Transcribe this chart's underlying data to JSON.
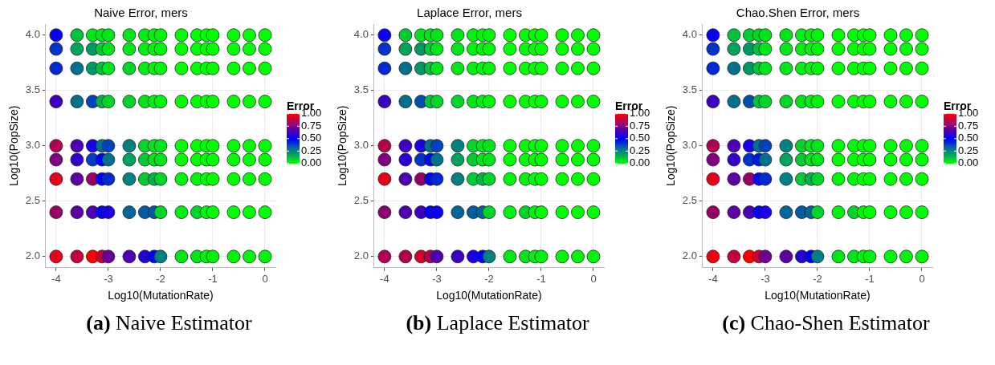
{
  "chart_data": [
    {
      "type": "scatter",
      "title": "Naive Error, mers",
      "xlabel": "Log10(MutationRate)",
      "ylabel": "Log10(PopSize)",
      "clabel": "Error",
      "clim": [
        0,
        1
      ],
      "cticks": [
        {
          "value": 0,
          "label": "0.00"
        },
        {
          "value": 0.25,
          "label": "0.25"
        },
        {
          "value": 0.5,
          "label": "0.50"
        },
        {
          "value": 0.75,
          "label": "0.75"
        },
        {
          "value": 1,
          "label": "1.00"
        }
      ],
      "xlim": [
        -4.2,
        0.2
      ],
      "ylim": [
        1.9,
        4.1
      ],
      "xticks": [
        -4,
        -3,
        -2,
        -1,
        0
      ],
      "yticks": [
        {
          "value": 2,
          "label": "2.0"
        },
        {
          "value": 2.5,
          "label": "2.5"
        },
        {
          "value": 3,
          "label": "3.0"
        },
        {
          "value": 3.5,
          "label": "3.5"
        },
        {
          "value": 4,
          "label": "4.0"
        }
      ],
      "grid": true,
      "marker": "circle",
      "legend": false,
      "annotations": [
        "(a) Naive Estimator"
      ],
      "x": [
        -4,
        -3.6,
        -3.3,
        -3.12,
        -3,
        -2.6,
        -2.3,
        -2.12,
        -2,
        -1.6,
        -1.3,
        -1.12,
        -1,
        -0.6,
        -0.3,
        0
      ],
      "series": [
        {
          "values": [
            4,
            4,
            4,
            4,
            4,
            4,
            4,
            4,
            4,
            4,
            4,
            4,
            4,
            4,
            4,
            4
          ],
          "colors": [
            "#0a00f5",
            "#00c23d",
            "#00e61a",
            "#00e61a",
            "#00e61a",
            "#00e61a",
            "#00f00f",
            "#00f50a",
            "#00f50a",
            "#00ff00",
            "#00ff00",
            "#00ff00",
            "#00ff00",
            "#00ff00",
            "#00ff00",
            "#00ff00"
          ]
        },
        {
          "values": [
            3.875,
            3.875,
            3.875,
            3.875,
            3.875,
            3.875,
            3.875,
            3.875,
            3.875,
            3.875,
            3.875,
            3.875,
            3.875,
            3.875,
            3.875,
            3.875
          ],
          "colors": [
            "#0033cc",
            "#00a35c",
            "#009966",
            "#00cc33",
            "#00e61a",
            "#00e61a",
            "#00f00f",
            "#00f50a",
            "#00f50a",
            "#00ff00",
            "#00ff00",
            "#00ff00",
            "#00ff00",
            "#00ff00",
            "#00ff00",
            "#00ff00"
          ]
        },
        {
          "values": [
            3.7,
            3.7,
            3.7,
            3.7,
            3.7,
            3.7,
            3.7,
            3.7,
            3.7,
            3.7,
            3.7,
            3.7,
            3.7,
            3.7,
            3.7,
            3.7
          ],
          "colors": [
            "#0029d6",
            "#00708f",
            "#009966",
            "#00c23d",
            "#00e61a",
            "#00d629",
            "#00f00f",
            "#00f50a",
            "#00f50a",
            "#00ff00",
            "#00ff00",
            "#00ff00",
            "#00ff00",
            "#00ff00",
            "#00ff00",
            "#00ff00"
          ]
        },
        {
          "values": [
            3.4,
            3.4,
            3.4,
            3.4,
            3.4,
            3.4,
            3.4,
            3.4,
            3.4,
            3.4,
            3.4,
            3.4,
            3.4,
            3.4,
            3.4,
            3.4
          ],
          "colors": [
            "#3d00c2",
            "#00708f",
            "#0042bd",
            "#00b34d",
            "#00d629",
            "#00d629",
            "#00e61a",
            "#00f00f",
            "#00f50a",
            "#00ff00",
            "#00ff00",
            "#00ff00",
            "#00ff00",
            "#00ff00",
            "#00ff00",
            "#00ff00"
          ]
        },
        {
          "values": [
            3,
            3,
            3,
            3,
            3,
            3,
            3,
            3,
            3,
            3,
            3,
            3,
            3,
            3,
            3,
            3
          ],
          "colors": [
            "#b3004d",
            "#4d00b3",
            "#1a00e6",
            "#00708f",
            "#0042bd",
            "#008080",
            "#00d629",
            "#00e61a",
            "#00e61a",
            "#00ff00",
            "#00ff00",
            "#00ff00",
            "#00ff00",
            "#00ff00",
            "#00ff00",
            "#00ff00"
          ]
        },
        {
          "values": [
            2.875,
            2.875,
            2.875,
            2.875,
            2.875,
            2.875,
            2.875,
            2.875,
            2.875,
            2.875,
            2.875,
            2.875,
            2.875,
            2.875,
            2.875,
            2.875
          ],
          "colors": [
            "#800080",
            "#3300cc",
            "#003dc2",
            "#0000ff",
            "#00708f",
            "#00a35c",
            "#00cc33",
            "#00e61a",
            "#00e61a",
            "#00ff00",
            "#00ff00",
            "#00ff00",
            "#00ff00",
            "#00ff00",
            "#00ff00",
            "#00ff00"
          ]
        },
        {
          "values": [
            2.7,
            2.7,
            2.7,
            2.7,
            2.7,
            2.7,
            2.7,
            2.7,
            2.7,
            2.7,
            2.7,
            2.7,
            2.7,
            2.7,
            2.7,
            2.7
          ],
          "colors": [
            "#e6001a",
            "#5c00a3",
            "#990066",
            "#0000ff",
            "#0029d6",
            "#008080",
            "#00cc33",
            "#00b34d",
            "#00d629",
            "#00f50a",
            "#00f50a",
            "#00ff00",
            "#00ff00",
            "#00ff00",
            "#00ff00",
            "#00ff00"
          ]
        },
        {
          "values": [
            2.4,
            2.4,
            2.4,
            2.4,
            2.4,
            2.4,
            2.4,
            2.4,
            2.4,
            2.4,
            2.4,
            2.4,
            2.4,
            2.4,
            2.4,
            2.4
          ],
          "colors": [
            "#990066",
            "#5c00a3",
            "#4d00b3",
            "#0000ff",
            "#1a00e6",
            "#006699",
            "#005ca3",
            "#0057a8",
            "#00d629",
            "#00f00f",
            "#00d629",
            "#00f50a",
            "#00ff00",
            "#00ff00",
            "#00ff00",
            "#00ff00"
          ]
        },
        {
          "values": [
            2,
            2,
            2,
            2,
            2,
            2,
            2,
            2,
            2,
            2,
            2,
            2,
            2,
            2,
            2,
            2
          ],
          "colors": [
            "#e6001a",
            "#c2003d",
            "#ff0000",
            "#cc0033",
            "#660099",
            "#4d00b3",
            "#2400db",
            "#0000ff",
            "#008080",
            "#00e61a",
            "#00e61a",
            "#00f00f",
            "#00f00f",
            "#00f50a",
            "#00f50a",
            "#00f50a"
          ]
        }
      ]
    },
    {
      "type": "scatter",
      "title": "Laplace Error, mers",
      "xlabel": "Log10(MutationRate)",
      "ylabel": "Log10(PopSize)",
      "clabel": "Error",
      "clim": [
        0,
        1
      ],
      "cticks": [
        {
          "value": 0,
          "label": "0.00"
        },
        {
          "value": 0.25,
          "label": "0.25"
        },
        {
          "value": 0.5,
          "label": "0.50"
        },
        {
          "value": 0.75,
          "label": "0.75"
        },
        {
          "value": 1,
          "label": "1.00"
        }
      ],
      "xlim": [
        -4.2,
        0.2
      ],
      "ylim": [
        1.9,
        4.1
      ],
      "xticks": [
        -4,
        -3,
        -2,
        -1,
        0
      ],
      "yticks": [
        {
          "value": 2,
          "label": "2.0"
        },
        {
          "value": 2.5,
          "label": "2.5"
        },
        {
          "value": 3,
          "label": "3.0"
        },
        {
          "value": 3.5,
          "label": "3.5"
        },
        {
          "value": 4,
          "label": "4.0"
        }
      ],
      "grid": true,
      "marker": "circle",
      "legend": false,
      "annotations": [
        "(b) Laplace Estimator"
      ],
      "x": [
        -4,
        -3.6,
        -3.3,
        -3.12,
        -3,
        -2.6,
        -2.3,
        -2.12,
        -2,
        -1.6,
        -1.3,
        -1.12,
        -1,
        -0.6,
        -0.3,
        0
      ],
      "series": [
        {
          "values": [
            4,
            4,
            4,
            4,
            4,
            4,
            4,
            4,
            4,
            4,
            4,
            4,
            4,
            4,
            4,
            4
          ],
          "colors": [
            "#0a00f5",
            "#00cc33",
            "#00e61a",
            "#00e61a",
            "#00e61a",
            "#00e61a",
            "#00f00f",
            "#00f50a",
            "#00f50a",
            "#00ff00",
            "#00ff00",
            "#00ff00",
            "#00ff00",
            "#00ff00",
            "#00ff00",
            "#00ff00"
          ]
        },
        {
          "values": [
            3.875,
            3.875,
            3.875,
            3.875,
            3.875,
            3.875,
            3.875,
            3.875,
            3.875,
            3.875,
            3.875,
            3.875,
            3.875,
            3.875,
            3.875,
            3.875
          ],
          "colors": [
            "#0033cc",
            "#00a35c",
            "#009966",
            "#00cc33",
            "#00e61a",
            "#00e61a",
            "#00f00f",
            "#00f50a",
            "#00f50a",
            "#00ff00",
            "#00ff00",
            "#00ff00",
            "#00ff00",
            "#00ff00",
            "#00ff00",
            "#00ff00"
          ]
        },
        {
          "values": [
            3.7,
            3.7,
            3.7,
            3.7,
            3.7,
            3.7,
            3.7,
            3.7,
            3.7,
            3.7,
            3.7,
            3.7,
            3.7,
            3.7,
            3.7,
            3.7
          ],
          "colors": [
            "#0029d6",
            "#00708f",
            "#009966",
            "#00c23d",
            "#00e61a",
            "#00e61a",
            "#00f00f",
            "#00f50a",
            "#00f50a",
            "#00ff00",
            "#00ff00",
            "#00ff00",
            "#00ff00",
            "#00ff00",
            "#00ff00",
            "#00ff00"
          ]
        },
        {
          "values": [
            3.4,
            3.4,
            3.4,
            3.4,
            3.4,
            3.4,
            3.4,
            3.4,
            3.4,
            3.4,
            3.4,
            3.4,
            3.4,
            3.4,
            3.4,
            3.4
          ],
          "colors": [
            "#3d00c2",
            "#00708f",
            "#004db3",
            "#00c23d",
            "#00d629",
            "#00d629",
            "#00e61a",
            "#00f00f",
            "#00f50a",
            "#00ff00",
            "#00ff00",
            "#00ff00",
            "#00ff00",
            "#00ff00",
            "#00ff00",
            "#00ff00"
          ]
        },
        {
          "values": [
            3,
            3,
            3,
            3,
            3,
            3,
            3,
            3,
            3,
            3,
            3,
            3,
            3,
            3,
            3,
            3
          ],
          "colors": [
            "#b3004d",
            "#3d00c2",
            "#1a00e6",
            "#00708f",
            "#0042bd",
            "#008080",
            "#00d629",
            "#00e61a",
            "#00e61a",
            "#00ff00",
            "#00ff00",
            "#00ff00",
            "#00ff00",
            "#00ff00",
            "#00ff00",
            "#00ff00"
          ]
        },
        {
          "values": [
            2.875,
            2.875,
            2.875,
            2.875,
            2.875,
            2.875,
            2.875,
            2.875,
            2.875,
            2.875,
            2.875,
            2.875,
            2.875,
            2.875,
            2.875,
            2.875
          ],
          "colors": [
            "#800080",
            "#2900d6",
            "#0033cc",
            "#000af5",
            "#00708f",
            "#00a35c",
            "#00cc33",
            "#00e61a",
            "#00e61a",
            "#00ff00",
            "#00ff00",
            "#00ff00",
            "#00ff00",
            "#00ff00",
            "#00ff00",
            "#00ff00"
          ]
        },
        {
          "values": [
            2.7,
            2.7,
            2.7,
            2.7,
            2.7,
            2.7,
            2.7,
            2.7,
            2.7,
            2.7,
            2.7,
            2.7,
            2.7,
            2.7,
            2.7,
            2.7
          ],
          "colors": [
            "#e6001a",
            "#4d00b3",
            "#990066",
            "#0000ff",
            "#0029d6",
            "#008080",
            "#00cc33",
            "#00b34d",
            "#00d629",
            "#00f50a",
            "#00f50a",
            "#00ff00",
            "#00ff00",
            "#00ff00",
            "#00ff00",
            "#00ff00"
          ]
        },
        {
          "values": [
            2.4,
            2.4,
            2.4,
            2.4,
            2.4,
            2.4,
            2.4,
            2.4,
            2.4,
            2.4,
            2.4,
            2.4,
            2.4,
            2.4,
            2.4,
            2.4
          ],
          "colors": [
            "#8f0070",
            "#4d00b3",
            "#3d00c2",
            "#0000ff",
            "#0a00f5",
            "#006699",
            "#005ca3",
            "#006699",
            "#00d629",
            "#00f00f",
            "#00d629",
            "#00f50a",
            "#00ff00",
            "#00ff00",
            "#00ff00",
            "#00ff00"
          ]
        },
        {
          "values": [
            2,
            2,
            2,
            2,
            2,
            2,
            2,
            2,
            2,
            2,
            2,
            2,
            2,
            2,
            2,
            2
          ],
          "colors": [
            "#b3004d",
            "#b3004d",
            "#d60029",
            "#b3004d",
            "#4d00b3",
            "#3d00c2",
            "#1a00e6",
            "#0000ff",
            "#008080",
            "#00e61a",
            "#00e61a",
            "#00f00f",
            "#00f00f",
            "#00f50a",
            "#00f50a",
            "#00f50a"
          ]
        }
      ]
    },
    {
      "type": "scatter",
      "title": "Chao.Shen Error, mers",
      "xlabel": "Log10(MutationRate)",
      "ylabel": "Log10(PopSize)",
      "clabel": "Error",
      "clim": [
        0,
        1
      ],
      "cticks": [
        {
          "value": 0,
          "label": "0.00"
        },
        {
          "value": 0.25,
          "label": "0.25"
        },
        {
          "value": 0.5,
          "label": "0.50"
        },
        {
          "value": 0.75,
          "label": "0.75"
        },
        {
          "value": 1,
          "label": "1.00"
        }
      ],
      "xlim": [
        -4.2,
        0.2
      ],
      "ylim": [
        1.9,
        4.1
      ],
      "xticks": [
        -4,
        -3,
        -2,
        -1,
        0
      ],
      "yticks": [
        {
          "value": 2,
          "label": "2.0"
        },
        {
          "value": 2.5,
          "label": "2.5"
        },
        {
          "value": 3,
          "label": "3.0"
        },
        {
          "value": 3.5,
          "label": "3.5"
        },
        {
          "value": 4,
          "label": "4.0"
        }
      ],
      "grid": true,
      "marker": "circle",
      "legend": false,
      "annotations": [
        "(c) Chao-Shen Estimator"
      ],
      "x": [
        -4,
        -3.6,
        -3.3,
        -3.12,
        -3,
        -2.6,
        -2.3,
        -2.12,
        -2,
        -1.6,
        -1.3,
        -1.12,
        -1,
        -0.6,
        -0.3,
        0
      ],
      "series": [
        {
          "values": [
            4,
            4,
            4,
            4,
            4,
            4,
            4,
            4,
            4,
            4,
            4,
            4,
            4,
            4,
            4,
            4
          ],
          "colors": [
            "#0a00f5",
            "#00c23d",
            "#00cc33",
            "#00d629",
            "#00e61a",
            "#00e61a",
            "#00f00f",
            "#00f50a",
            "#00f50a",
            "#00ff00",
            "#00ff00",
            "#00ff00",
            "#00ff00",
            "#00ff00",
            "#00ff00",
            "#00ff00"
          ]
        },
        {
          "values": [
            3.875,
            3.875,
            3.875,
            3.875,
            3.875,
            3.875,
            3.875,
            3.875,
            3.875,
            3.875,
            3.875,
            3.875,
            3.875,
            3.875,
            3.875,
            3.875
          ],
          "colors": [
            "#0033cc",
            "#00a35c",
            "#009966",
            "#00c23d",
            "#00e61a",
            "#00e61a",
            "#00f00f",
            "#00f50a",
            "#00f50a",
            "#00ff00",
            "#00ff00",
            "#00ff00",
            "#00ff00",
            "#00ff00",
            "#00ff00",
            "#00ff00"
          ]
        },
        {
          "values": [
            3.7,
            3.7,
            3.7,
            3.7,
            3.7,
            3.7,
            3.7,
            3.7,
            3.7,
            3.7,
            3.7,
            3.7,
            3.7,
            3.7,
            3.7,
            3.7
          ],
          "colors": [
            "#0029d6",
            "#00708f",
            "#009966",
            "#00c23d",
            "#00e61a",
            "#00e61a",
            "#00f00f",
            "#00f50a",
            "#00f50a",
            "#00ff00",
            "#00ff00",
            "#00ff00",
            "#00ff00",
            "#00ff00",
            "#00ff00",
            "#00ff00"
          ]
        },
        {
          "values": [
            3.4,
            3.4,
            3.4,
            3.4,
            3.4,
            3.4,
            3.4,
            3.4,
            3.4,
            3.4,
            3.4,
            3.4,
            3.4,
            3.4,
            3.4,
            3.4
          ],
          "colors": [
            "#3d00c2",
            "#00708f",
            "#004db3",
            "#00c23d",
            "#00d629",
            "#00d629",
            "#00e61a",
            "#00f00f",
            "#00f50a",
            "#00ff00",
            "#00ff00",
            "#00ff00",
            "#00ff00",
            "#00ff00",
            "#00ff00",
            "#00ff00"
          ]
        },
        {
          "values": [
            3,
            3,
            3,
            3,
            3,
            3,
            3,
            3,
            3,
            3,
            3,
            3,
            3,
            3,
            3,
            3
          ],
          "colors": [
            "#b3004d",
            "#4d00b3",
            "#1a00e6",
            "#00708f",
            "#0042bd",
            "#008080",
            "#00d629",
            "#00e61a",
            "#00e61a",
            "#00ff00",
            "#00ff00",
            "#00ff00",
            "#00ff00",
            "#00ff00",
            "#00ff00",
            "#00ff00"
          ]
        },
        {
          "values": [
            2.875,
            2.875,
            2.875,
            2.875,
            2.875,
            2.875,
            2.875,
            2.875,
            2.875,
            2.875,
            2.875,
            2.875,
            2.875,
            2.875,
            2.875,
            2.875
          ],
          "colors": [
            "#800080",
            "#3300cc",
            "#0033cc",
            "#001ae6",
            "#00708f",
            "#00a35c",
            "#00cc33",
            "#00e61a",
            "#00e61a",
            "#00ff00",
            "#00ff00",
            "#00ff00",
            "#00ff00",
            "#00ff00",
            "#00ff00",
            "#00ff00"
          ]
        },
        {
          "values": [
            2.7,
            2.7,
            2.7,
            2.7,
            2.7,
            2.7,
            2.7,
            2.7,
            2.7,
            2.7,
            2.7,
            2.7,
            2.7,
            2.7,
            2.7,
            2.7
          ],
          "colors": [
            "#e6001a",
            "#5c00a3",
            "#990066",
            "#000af5",
            "#0029d6",
            "#008080",
            "#00cc33",
            "#00b34d",
            "#00d629",
            "#00f50a",
            "#00f50a",
            "#00ff00",
            "#00ff00",
            "#00ff00",
            "#00ff00",
            "#00ff00"
          ]
        },
        {
          "values": [
            2.4,
            2.4,
            2.4,
            2.4,
            2.4,
            2.4,
            2.4,
            2.4,
            2.4,
            2.4,
            2.4,
            2.4,
            2.4,
            2.4,
            2.4,
            2.4
          ],
          "colors": [
            "#990066",
            "#5c00a3",
            "#4d00b3",
            "#0000ff",
            "#1a00e6",
            "#006699",
            "#005ca3",
            "#006699",
            "#00d629",
            "#00f00f",
            "#00d629",
            "#00f50a",
            "#00ff00",
            "#00ff00",
            "#00ff00",
            "#00ff00"
          ]
        },
        {
          "values": [
            2,
            2,
            2,
            2,
            2,
            2,
            2,
            2,
            2,
            2,
            2,
            2,
            2,
            2,
            2,
            2
          ],
          "colors": [
            "#f0000f",
            "#c2003d",
            "#ff0000",
            "#cc0033",
            "#70008f",
            "#5c00a3",
            "#2400db",
            "#0000ff",
            "#008080",
            "#00e61a",
            "#00e61a",
            "#00f00f",
            "#00f00f",
            "#00f50a",
            "#00f50a",
            "#00f50a"
          ]
        }
      ]
    }
  ]
}
